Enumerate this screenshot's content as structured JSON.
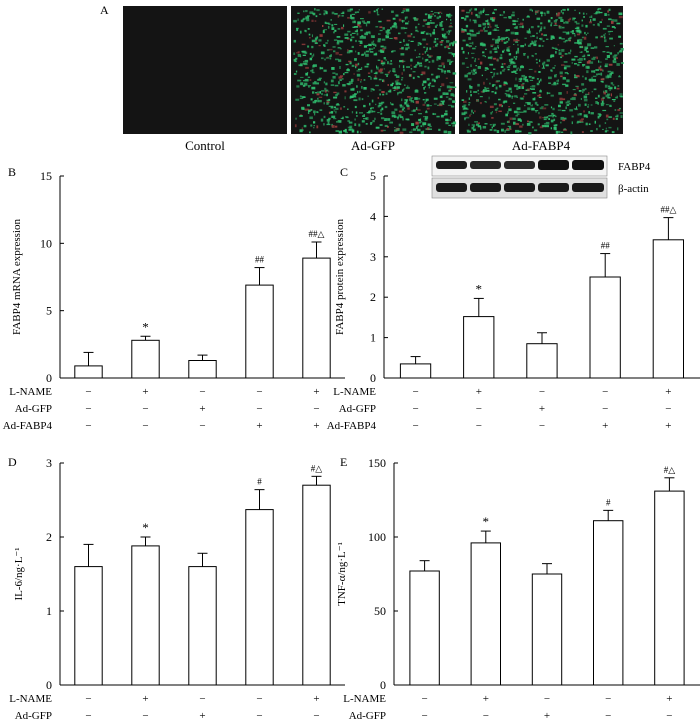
{
  "panel_a": {
    "letter": "A",
    "images": [
      {
        "caption": "Control",
        "signal": "none"
      },
      {
        "caption": "Ad-GFP",
        "signal": "green"
      },
      {
        "caption": "Ad-FABP4",
        "signal": "green"
      }
    ],
    "colors": {
      "background": "#141414",
      "fluorescence": "#2fbf6f"
    }
  },
  "blot": {
    "rows": [
      "FABP4",
      "β-actin"
    ]
  },
  "conditions": {
    "labels": [
      "L-NAME",
      "Ad-GFP",
      "Ad-FABP4"
    ],
    "signs": [
      [
        "−",
        "+",
        "−",
        "−",
        "+"
      ],
      [
        "−",
        "−",
        "+",
        "−",
        "−"
      ],
      [
        "−",
        "−",
        "−",
        "+",
        "+"
      ]
    ]
  },
  "chart_data": [
    {
      "id": "B",
      "letter": "B",
      "type": "bar",
      "ylabel": "FABP4 mRNA expression",
      "ylim": [
        0,
        15
      ],
      "yticks": [
        0,
        5,
        10,
        15
      ],
      "values": [
        0.9,
        2.8,
        1.3,
        6.9,
        8.9
      ],
      "errors": [
        1.0,
        0.3,
        0.4,
        1.3,
        1.2
      ],
      "sig": [
        "",
        "*",
        "",
        "##",
        "##△"
      ]
    },
    {
      "id": "C",
      "letter": "C",
      "type": "bar",
      "ylabel": "FABP4 protein expression",
      "ylim": [
        0,
        5
      ],
      "yticks": [
        0,
        1,
        2,
        3,
        4,
        5
      ],
      "values": [
        0.35,
        1.52,
        0.85,
        2.5,
        3.42
      ],
      "errors": [
        0.18,
        0.45,
        0.27,
        0.58,
        0.55
      ],
      "sig": [
        "",
        "*",
        "",
        "##",
        "##△"
      ]
    },
    {
      "id": "D",
      "letter": "D",
      "type": "bar",
      "ylabel": "IL-6/ng·L⁻¹",
      "ylim": [
        0,
        3
      ],
      "yticks": [
        0,
        1,
        2,
        3
      ],
      "values": [
        1.6,
        1.88,
        1.6,
        2.37,
        2.7
      ],
      "errors": [
        0.3,
        0.12,
        0.18,
        0.27,
        0.12
      ],
      "sig": [
        "",
        "*",
        "",
        "#",
        "#△"
      ]
    },
    {
      "id": "E",
      "letter": "E",
      "type": "bar",
      "ylabel": "TNF-α/ng·L⁻¹",
      "ylim": [
        0,
        150
      ],
      "yticks": [
        0,
        50,
        100,
        150
      ],
      "values": [
        77,
        96,
        75,
        111,
        131
      ],
      "errors": [
        7,
        8,
        7,
        7,
        9
      ],
      "sig": [
        "",
        "*",
        "",
        "#",
        "#△"
      ]
    }
  ]
}
